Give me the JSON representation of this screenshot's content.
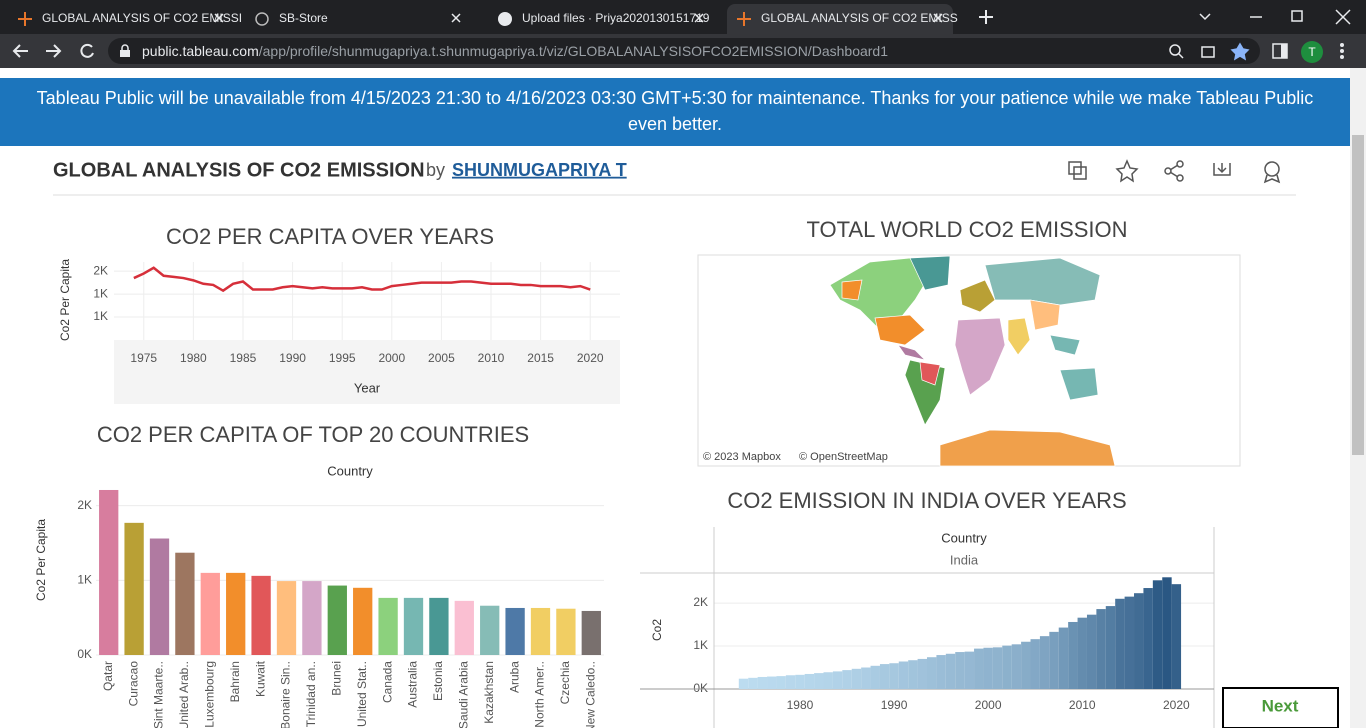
{
  "browser": {
    "tabs": [
      "GLOBAL ANALYSIS OF CO2 EMISSI",
      "SB-Store",
      "Upload files · Priya2020130151719",
      "GLOBAL ANALYSIS OF CO2 EMISS"
    ],
    "url_host": "public.tableau.com",
    "url_path": "/app/profile/shunmugapriya.t.shunmugapriya.t/viz/GLOBALANALYSISOFCO2EMISSION/Dashboard1",
    "profile_initial": "T"
  },
  "banner": "Tableau Public will be unavailable from 4/15/2023 21:30 to 4/16/2023 03:30 GMT+5:30 for maintenance. Thanks for your patience while we make Tableau Public even better.",
  "header": {
    "title": "GLOBAL ANALYSIS OF CO2 EMISSION",
    "by": "by",
    "author": "SHUNMUGAPRIYA T"
  },
  "map": {
    "title": "TOTAL WORLD CO2 EMISSION",
    "credits": [
      "© 2023 Mapbox",
      "© OpenStreetMap"
    ]
  },
  "next_button": "Next",
  "chart_data": [
    {
      "type": "line",
      "title": "CO2 PER CAPITA OVER YEARS",
      "x_label": "Year",
      "y_label": "Co2 Per Capita",
      "color": "#d62f3a",
      "x": [
        1974,
        1975,
        1976,
        1977,
        1978,
        1979,
        1980,
        1981,
        1982,
        1983,
        1984,
        1985,
        1986,
        1987,
        1988,
        1989,
        1990,
        1991,
        1992,
        1993,
        1994,
        1995,
        1996,
        1997,
        1998,
        1999,
        2000,
        2001,
        2002,
        2003,
        2004,
        2005,
        2006,
        2007,
        2008,
        2009,
        2010,
        2011,
        2012,
        2013,
        2014,
        2015,
        2016,
        2017,
        2018,
        2019,
        2020
      ],
      "values": [
        1540,
        1580,
        1630,
        1560,
        1550,
        1540,
        1520,
        1490,
        1480,
        1430,
        1490,
        1510,
        1440,
        1440,
        1440,
        1460,
        1470,
        1460,
        1450,
        1460,
        1450,
        1450,
        1450,
        1460,
        1440,
        1440,
        1470,
        1480,
        1490,
        1500,
        1500,
        1500,
        1500,
        1510,
        1510,
        1500,
        1490,
        1490,
        1490,
        1480,
        1480,
        1470,
        1470,
        1470,
        1460,
        1470,
        1440
      ],
      "xlim": [
        1972,
        2023
      ],
      "xticks": [
        1975,
        1980,
        1985,
        1990,
        1995,
        2000,
        2005,
        2010,
        2015,
        2020
      ],
      "ylim": [
        1000,
        1680
      ],
      "yticks": [
        {
          "value": 1600,
          "label": "2K"
        },
        {
          "value": 1400,
          "label": "1K"
        },
        {
          "value": 1200,
          "label": "1K"
        }
      ],
      "grid": true
    },
    {
      "type": "bar",
      "title": "CO2 PER CAPITA OF TOP 20 COUNTRIES",
      "x_header": "Country",
      "y_label": "Co2 Per Capita",
      "categories": [
        "Qatar",
        "Curacao",
        "Sint Maarte..",
        "United Arab..",
        "Luxembourg",
        "Bahrain",
        "Kuwait",
        "Bonaire Sin..",
        "Trinidad an..",
        "Brunei",
        "United Stat..",
        "Canada",
        "Australia",
        "Estonia",
        "Saudi Arabia",
        "Kazakhstan",
        "Aruba",
        "North Amer..",
        "Czechia",
        "New Caledo.."
      ],
      "values": [
        2210,
        1770,
        1560,
        1370,
        1100,
        1100,
        1060,
        990,
        990,
        930,
        900,
        765,
        765,
        765,
        725,
        660,
        630,
        630,
        620,
        590
      ],
      "colors": [
        "#d77d9e",
        "#b9a035",
        "#b07aa1",
        "#9d7660",
        "#ff9d9a",
        "#f28e2b",
        "#e15759",
        "#ffbe7d",
        "#d4a6c8",
        "#59a14f",
        "#f28e2b",
        "#8cd17d",
        "#76b7b2",
        "#499894",
        "#fabfd2",
        "#86bcb6",
        "#4e79a7",
        "#f1ce63",
        "#f1ce63",
        "#79706e"
      ],
      "ylim": [
        0,
        2250
      ],
      "yticks": [
        {
          "value": 0,
          "label": "0K"
        },
        {
          "value": 1000,
          "label": "1K"
        },
        {
          "value": 2000,
          "label": "2K"
        }
      ],
      "grid": true
    },
    {
      "type": "column",
      "title": "CO2 EMISSION IN INDIA OVER YEARS",
      "column_header": "Country",
      "panel": "India",
      "y_label": "Co2",
      "x": [
        1974,
        1975,
        1976,
        1977,
        1978,
        1979,
        1980,
        1981,
        1982,
        1983,
        1984,
        1985,
        1986,
        1987,
        1988,
        1989,
        1990,
        1991,
        1992,
        1993,
        1994,
        1995,
        1996,
        1997,
        1998,
        1999,
        2000,
        2001,
        2002,
        2003,
        2004,
        2005,
        2006,
        2007,
        2008,
        2009,
        2010,
        2011,
        2012,
        2013,
        2014,
        2015,
        2016,
        2017,
        2018,
        2019,
        2020
      ],
      "values": [
        240,
        260,
        280,
        290,
        300,
        320,
        330,
        350,
        370,
        390,
        410,
        440,
        470,
        500,
        540,
        580,
        600,
        640,
        670,
        700,
        740,
        790,
        820,
        860,
        870,
        940,
        960,
        970,
        1010,
        1040,
        1100,
        1160,
        1230,
        1330,
        1430,
        1560,
        1660,
        1730,
        1860,
        1930,
        2100,
        2150,
        2230,
        2350,
        2530,
        2600,
        2440
      ],
      "color_low": "#bcdcf0",
      "color_high": "#2a5783",
      "xlim": [
        1963,
        2024
      ],
      "xticks": [
        1980,
        1990,
        2000,
        2010,
        2020
      ],
      "ylim": [
        0,
        2700
      ],
      "yticks": [
        {
          "value": 0,
          "label": "0K"
        },
        {
          "value": 1000,
          "label": "1K"
        },
        {
          "value": 2000,
          "label": "2K"
        }
      ],
      "grid": true
    }
  ]
}
